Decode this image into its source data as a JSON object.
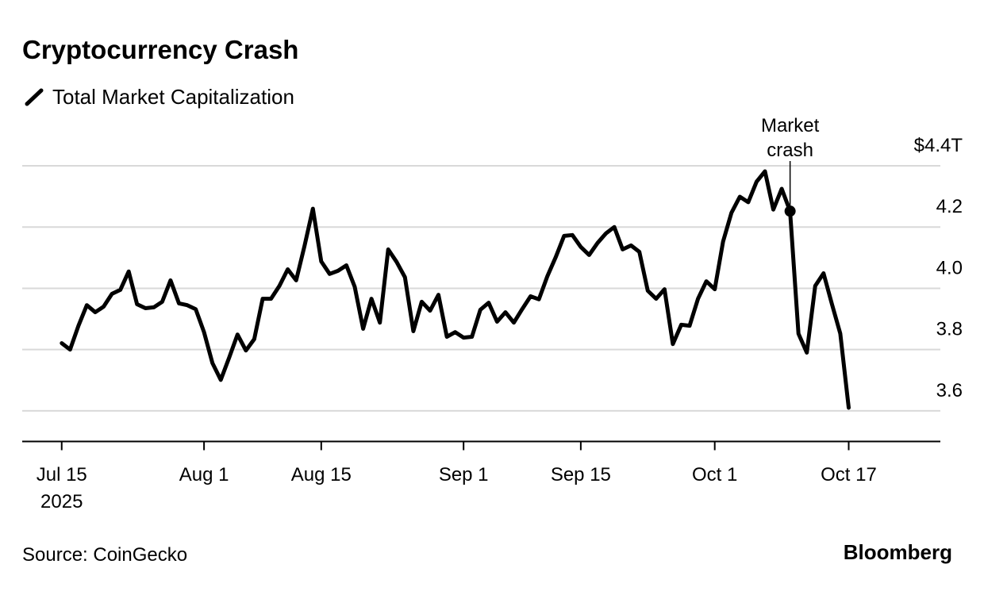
{
  "chart_data": {
    "type": "line",
    "title": "Cryptocurrency Crash",
    "source": "Source: CoinGecko",
    "brand": "Bloomberg",
    "x": [
      "2025-07-15",
      "2025-07-16",
      "2025-07-17",
      "2025-07-18",
      "2025-07-19",
      "2025-07-20",
      "2025-07-21",
      "2025-07-22",
      "2025-07-23",
      "2025-07-24",
      "2025-07-25",
      "2025-07-26",
      "2025-07-27",
      "2025-07-28",
      "2025-07-29",
      "2025-07-30",
      "2025-07-31",
      "2025-08-01",
      "2025-08-02",
      "2025-08-03",
      "2025-08-04",
      "2025-08-05",
      "2025-08-06",
      "2025-08-07",
      "2025-08-08",
      "2025-08-09",
      "2025-08-10",
      "2025-08-11",
      "2025-08-12",
      "2025-08-13",
      "2025-08-14",
      "2025-08-15",
      "2025-08-16",
      "2025-08-17",
      "2025-08-18",
      "2025-08-19",
      "2025-08-20",
      "2025-08-21",
      "2025-08-22",
      "2025-08-23",
      "2025-08-24",
      "2025-08-25",
      "2025-08-26",
      "2025-08-27",
      "2025-08-28",
      "2025-08-29",
      "2025-08-30",
      "2025-08-31",
      "2025-09-01",
      "2025-09-02",
      "2025-09-03",
      "2025-09-04",
      "2025-09-05",
      "2025-09-06",
      "2025-09-07",
      "2025-09-08",
      "2025-09-09",
      "2025-09-10",
      "2025-09-11",
      "2025-09-12",
      "2025-09-13",
      "2025-09-14",
      "2025-09-15",
      "2025-09-16",
      "2025-09-17",
      "2025-09-18",
      "2025-09-19",
      "2025-09-20",
      "2025-09-21",
      "2025-09-22",
      "2025-09-23",
      "2025-09-24",
      "2025-09-25",
      "2025-09-26",
      "2025-09-27",
      "2025-09-28",
      "2025-09-29",
      "2025-09-30",
      "2025-10-01",
      "2025-10-02",
      "2025-10-03",
      "2025-10-04",
      "2025-10-05",
      "2025-10-06",
      "2025-10-07",
      "2025-10-08",
      "2025-10-09",
      "2025-10-10",
      "2025-10-11",
      "2025-10-12",
      "2025-10-13",
      "2025-10-14",
      "2025-10-15",
      "2025-10-16",
      "2025-10-17"
    ],
    "series": [
      {
        "name": "Total Market Capitalization",
        "color": "#000000",
        "values": [
          3.821,
          3.8,
          3.878,
          3.945,
          3.922,
          3.94,
          3.982,
          3.995,
          4.055,
          3.948,
          3.935,
          3.938,
          3.956,
          4.026,
          3.951,
          3.945,
          3.932,
          3.857,
          3.756,
          3.701,
          3.774,
          3.849,
          3.797,
          3.834,
          3.966,
          3.966,
          4.008,
          4.062,
          4.026,
          4.138,
          4.26,
          4.088,
          4.047,
          4.057,
          4.075,
          4.005,
          3.868,
          3.966,
          3.888,
          4.127,
          4.086,
          4.036,
          3.86,
          3.956,
          3.927,
          3.979,
          3.842,
          3.857,
          3.839,
          3.842,
          3.93,
          3.953,
          3.891,
          3.922,
          3.888,
          3.932,
          3.974,
          3.964,
          4.039,
          4.101,
          4.171,
          4.174,
          4.135,
          4.109,
          4.148,
          4.179,
          4.2,
          4.127,
          4.14,
          4.119,
          3.992,
          3.966,
          3.997,
          3.818,
          3.881,
          3.878,
          3.966,
          4.023,
          3.997,
          4.153,
          4.247,
          4.299,
          4.281,
          4.348,
          4.382,
          4.257,
          4.325,
          4.252,
          3.852,
          3.79,
          4.008,
          4.049,
          3.948,
          3.852,
          3.61
        ]
      }
    ],
    "annotation": {
      "x": "2025-10-10",
      "lines": [
        "Market",
        "crash"
      ]
    },
    "xlim": [
      "2025-07-10",
      "2025-10-27"
    ],
    "xticks": [
      {
        "value": "2025-07-15",
        "label": "Jul 15"
      },
      {
        "value": "2025-08-01",
        "label": "Aug 1"
      },
      {
        "value": "2025-08-15",
        "label": "Aug 15"
      },
      {
        "value": "2025-09-01",
        "label": "Sep 1"
      },
      {
        "value": "2025-09-15",
        "label": "Sep 15"
      },
      {
        "value": "2025-10-01",
        "label": "Oct 1"
      },
      {
        "value": "2025-10-17",
        "label": "Oct 17"
      }
    ],
    "x_year_label": "2025",
    "ylim": [
      3.5,
      4.4
    ],
    "yticks": [
      {
        "value": 3.6,
        "label": "3.6"
      },
      {
        "value": 3.8,
        "label": "3.8"
      },
      {
        "value": 4.0,
        "label": "4.0"
      },
      {
        "value": 4.2,
        "label": "4.2"
      },
      {
        "value": 4.4,
        "label": "$4.4T"
      }
    ],
    "grid": true
  }
}
